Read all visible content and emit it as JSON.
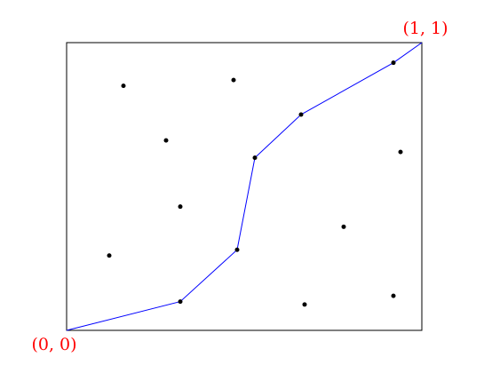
{
  "chart_data": {
    "type": "scatter",
    "xlim": [
      0,
      1
    ],
    "ylim": [
      0,
      1
    ],
    "points": {
      "color": "#000000",
      "x": [
        0.16,
        0.47,
        0.28,
        0.94,
        0.32,
        0.78,
        0.12,
        0.67,
        0.92
      ],
      "y": [
        0.85,
        0.87,
        0.66,
        0.62,
        0.43,
        0.36,
        0.26,
        0.09,
        0.12
      ]
    },
    "path": {
      "color": "#0000ff",
      "x": [
        0,
        0.32,
        0.48,
        0.53,
        0.66,
        0.92,
        1
      ],
      "y": [
        0,
        0.1,
        0.28,
        0.6,
        0.75,
        0.93,
        1
      ]
    },
    "annotations": [
      {
        "text": "(0, 0)",
        "x": 0,
        "y": 0,
        "color": "#ff0000"
      },
      {
        "text": "(1, 1)",
        "x": 1,
        "y": 1,
        "color": "#ff0000"
      }
    ]
  }
}
